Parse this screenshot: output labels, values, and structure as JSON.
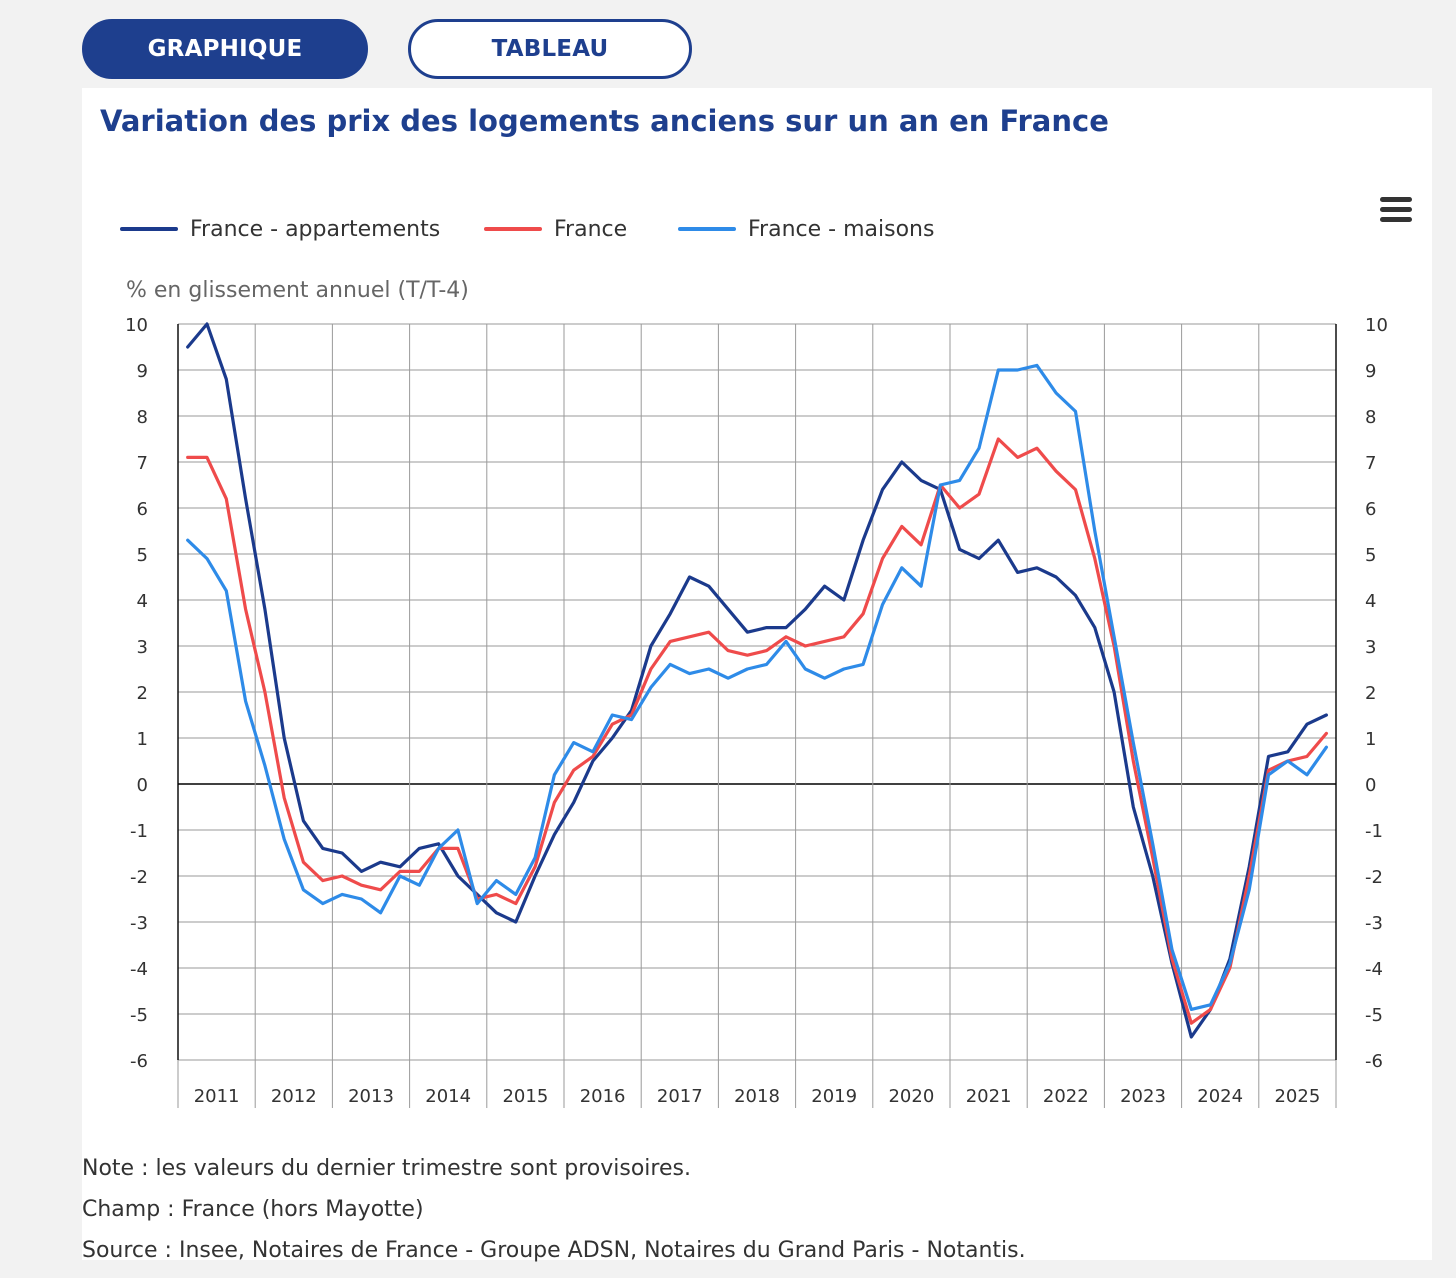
{
  "tabs": {
    "graph_label": "GRAPHIQUE",
    "table_label": "TABLEAU"
  },
  "menu_icon": "hamburger-menu-icon",
  "chart_data": {
    "type": "line",
    "title": "Variation des prix des logements anciens sur un an en France",
    "ylabel": "% en glissement annuel (T/T-4)",
    "ylim": [
      -6,
      10
    ],
    "yticks": [
      "10",
      "9",
      "8",
      "7",
      "6",
      "5",
      "4",
      "3",
      "2",
      "1",
      "0",
      "-1",
      "-2",
      "-3",
      "-4",
      "-5",
      "-6"
    ],
    "ytick_values": [
      10,
      9,
      8,
      7,
      6,
      5,
      4,
      3,
      2,
      1,
      0,
      -1,
      -2,
      -3,
      -4,
      -5,
      -6
    ],
    "years": [
      "2011",
      "2012",
      "2013",
      "2014",
      "2015",
      "2016",
      "2017",
      "2018",
      "2019",
      "2020",
      "2021",
      "2022",
      "2023",
      "2024",
      "2025"
    ],
    "x_start": 2011,
    "frequency": "quarterly",
    "grid": true,
    "right_axis": true,
    "legend_position": "top-left",
    "series": [
      {
        "name": "France - appartements",
        "color": "#1b3a8c",
        "values": [
          9.5,
          10,
          8.8,
          6.2,
          3.8,
          1.0,
          -0.8,
          -1.4,
          -1.5,
          -1.9,
          -1.7,
          -1.8,
          -1.4,
          -1.3,
          -2.0,
          -2.4,
          -2.8,
          -3.0,
          -2.0,
          -1.1,
          -0.4,
          0.5,
          1.0,
          1.6,
          3.0,
          3.7,
          4.5,
          4.3,
          3.8,
          3.3,
          3.4,
          3.4,
          3.8,
          4.3,
          4.0,
          5.3,
          6.4,
          7.0,
          6.6,
          6.4,
          5.1,
          4.9,
          5.3,
          4.6,
          4.7,
          4.5,
          4.1,
          3.4,
          2.0,
          -0.5,
          -2.0,
          -3.9,
          -5.5,
          -4.9,
          -3.8,
          -1.8,
          0.6,
          0.7,
          1.3,
          1.5
        ]
      },
      {
        "name": "France",
        "color": "#ef4b4b",
        "values": [
          7.1,
          7.1,
          6.2,
          3.8,
          2.0,
          -0.3,
          -1.7,
          -2.1,
          -2.0,
          -2.2,
          -2.3,
          -1.9,
          -1.9,
          -1.4,
          -1.4,
          -2.5,
          -2.4,
          -2.6,
          -1.8,
          -0.4,
          0.3,
          0.6,
          1.3,
          1.5,
          2.5,
          3.1,
          3.2,
          3.3,
          2.9,
          2.8,
          2.9,
          3.2,
          3.0,
          3.1,
          3.2,
          3.7,
          4.9,
          5.6,
          5.2,
          6.5,
          6.0,
          6.3,
          7.5,
          7.1,
          7.3,
          6.8,
          6.4,
          4.9,
          3.0,
          0.5,
          -1.6,
          -3.8,
          -5.2,
          -4.9,
          -4.0,
          -2.0,
          0.3,
          0.5,
          0.6,
          1.1
        ]
      },
      {
        "name": "France - maisons",
        "color": "#2e8be8",
        "values": [
          5.3,
          4.9,
          4.2,
          1.8,
          0.4,
          -1.2,
          -2.3,
          -2.6,
          -2.4,
          -2.5,
          -2.8,
          -2.0,
          -2.2,
          -1.4,
          -1.0,
          -2.6,
          -2.1,
          -2.4,
          -1.6,
          0.2,
          0.9,
          0.7,
          1.5,
          1.4,
          2.1,
          2.6,
          2.4,
          2.5,
          2.3,
          2.5,
          2.6,
          3.1,
          2.5,
          2.3,
          2.5,
          2.6,
          3.9,
          4.7,
          4.3,
          6.5,
          6.6,
          7.3,
          9.0,
          9.0,
          9.1,
          8.5,
          8.1,
          5.5,
          3.2,
          0.9,
          -1.3,
          -3.6,
          -4.9,
          -4.8,
          -3.9,
          -2.3,
          0.2,
          0.5,
          0.2,
          0.8
        ]
      }
    ]
  },
  "notes": {
    "note": "Note : les valeurs du dernier trimestre sont provisoires.",
    "champ": "Champ : France (hors Mayotte)",
    "source": "Source : Insee, Notaires de France - Groupe ADSN, Notaires du Grand Paris - Notantis."
  }
}
